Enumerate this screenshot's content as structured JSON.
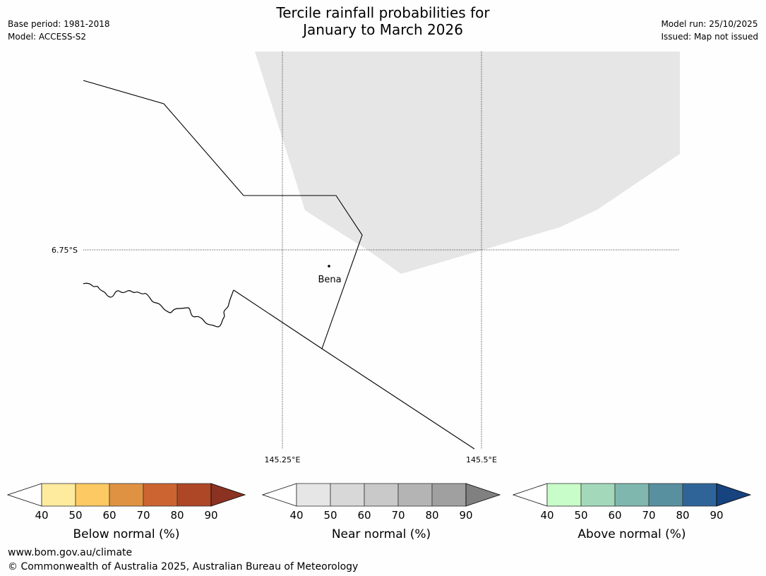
{
  "title": {
    "line1": "Tercile rainfall probabilities for",
    "line2": "January to March 2026"
  },
  "meta_left": {
    "base_period": "Base period: 1981-2018",
    "model": "Model: ACCESS-S2"
  },
  "meta_right": {
    "model_run": "Model run: 25/10/2025",
    "issued": "Issued: Map not issued"
  },
  "map": {
    "region_shade_color": "#e6e6e6",
    "gridlines": {
      "latitude_label": "6.75°S",
      "longitude_labels": [
        "145.25°E",
        "145.5°E"
      ]
    },
    "place": {
      "name": "Bena"
    }
  },
  "legends": [
    {
      "title": "Below normal (%)",
      "ticks": [
        "40",
        "50",
        "60",
        "70",
        "80",
        "90"
      ],
      "colors": [
        "#feeb9e",
        "#fdc963",
        "#e09243",
        "#cc6432",
        "#ad4726"
      ],
      "extend_color": "#8b3222"
    },
    {
      "title": "Near normal (%)",
      "ticks": [
        "40",
        "50",
        "60",
        "70",
        "80",
        "90"
      ],
      "colors": [
        "#e6e6e6",
        "#d8d8d8",
        "#c9c9c9",
        "#b4b4b4",
        "#a0a0a0"
      ],
      "extend_color": "#808080"
    },
    {
      "title": "Above normal (%)",
      "ticks": [
        "40",
        "50",
        "60",
        "70",
        "80",
        "90"
      ],
      "colors": [
        "#c8fcc8",
        "#a3d9ba",
        "#7fb7ae",
        "#5890a0",
        "#2f6498"
      ],
      "extend_color": "#17437e"
    }
  ],
  "footer": {
    "url": "www.bom.gov.au/climate",
    "copyright": "© Commonwealth of Australia 2025, Australian Bureau of Meteorology"
  }
}
